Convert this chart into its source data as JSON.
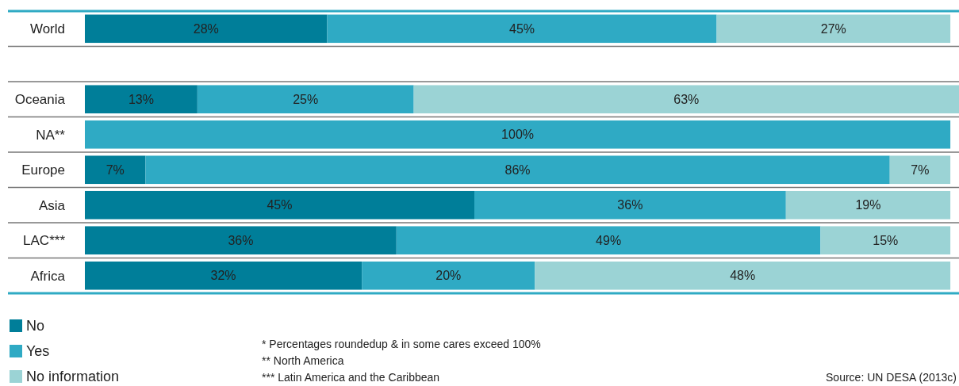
{
  "chart_data": {
    "type": "bar",
    "orientation": "horizontal",
    "stacked": true,
    "tick_labels": "y",
    "legend": "bottom left",
    "categories": [
      "World",
      null,
      "Oceania",
      "NA**",
      "Europe",
      "Asia",
      "LAC***",
      "Africa"
    ],
    "series": [
      {
        "name": "No",
        "color": "#007e99",
        "values": [
          28,
          null,
          13,
          null,
          7,
          45,
          36,
          32
        ],
        "value_labels": [
          "28%",
          null,
          "13%",
          null,
          "7%",
          "45%",
          "36%",
          "32%"
        ]
      },
      {
        "name": "Yes",
        "color": "#2faac4",
        "values": [
          45,
          null,
          25,
          100,
          86,
          36,
          49,
          20
        ],
        "value_labels": [
          "45%",
          null,
          "25%",
          "100%",
          "86%",
          "36%",
          "49%",
          "20%"
        ]
      },
      {
        "name": "No information",
        "color": "#9bd3d5",
        "values": [
          27,
          null,
          63,
          null,
          7,
          19,
          15,
          48
        ],
        "value_labels": [
          "27%",
          null,
          "63%",
          null,
          "7%",
          "19%",
          "15%",
          "48%"
        ]
      }
    ],
    "annotations": [
      "* Percentages roundedup & in some cares exceed 100%",
      "** North America",
      "*** Latin America and the Caribbean",
      "Source: UN DESA (2013c)"
    ]
  }
}
